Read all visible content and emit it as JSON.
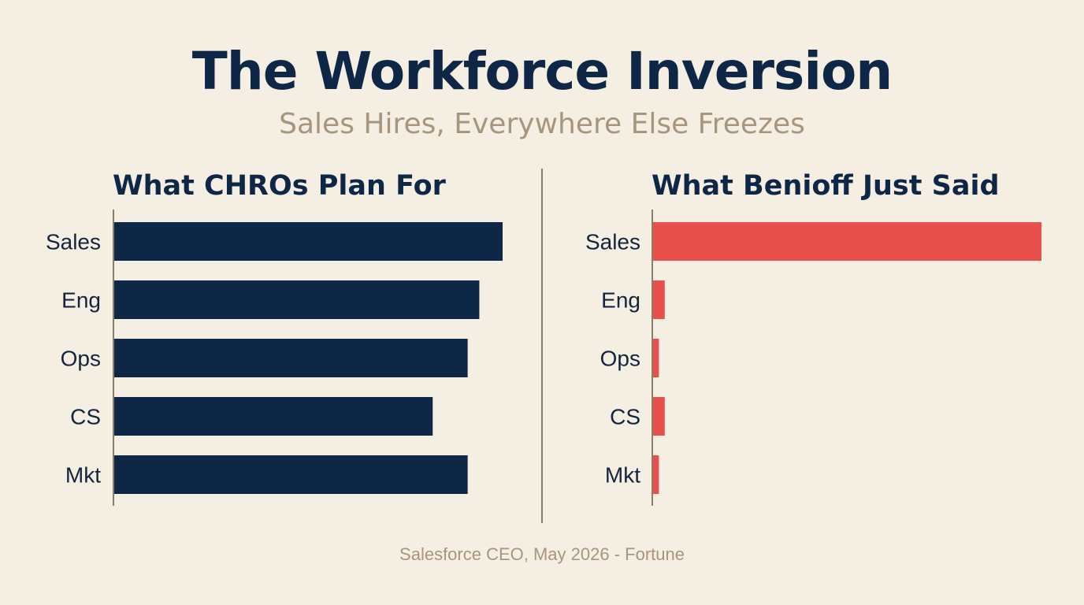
{
  "title": "The Workforce Inversion",
  "subtitle": "Sales Hires, Everywhere Else Freezes",
  "caption": "Salesforce CEO, May 2026 - Fortune",
  "colors": {
    "background": "#f4efe2",
    "navy": "#0f2746",
    "red": "#e8504c",
    "muted": "#a8967c",
    "axis": "#8a7d6a"
  },
  "chart_data": [
    {
      "type": "bar",
      "orientation": "horizontal",
      "title": "What CHROs Plan For",
      "categories": [
        "Sales",
        "Eng",
        "Ops",
        "CS",
        "Mkt"
      ],
      "values": [
        100,
        94,
        91,
        82,
        91
      ],
      "xlim": [
        0,
        100
      ],
      "color": "#0f2746",
      "grid": false,
      "legend": "none"
    },
    {
      "type": "bar",
      "orientation": "horizontal",
      "title": "What Benioff Just Said",
      "categories": [
        "Sales",
        "Eng",
        "Ops",
        "CS",
        "Mkt"
      ],
      "values": [
        100,
        3,
        1.5,
        3,
        1.5
      ],
      "xlim": [
        0,
        100
      ],
      "color": "#e8504c",
      "grid": false,
      "legend": "none"
    }
  ]
}
